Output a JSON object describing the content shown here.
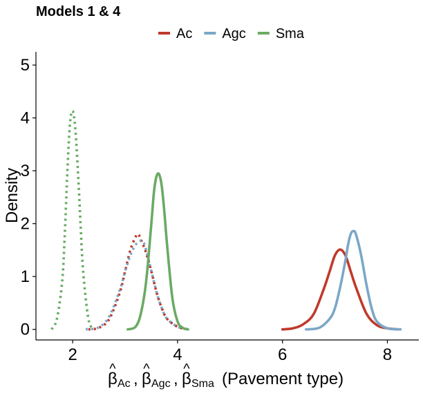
{
  "chart_data": {
    "type": "line",
    "title": "Models 1  & 4",
    "xlabel": "(Pavement type)",
    "xlabel_symbols": {
      "hat": "^",
      "beta": "β",
      "separator": ",",
      "sub_ac": "Ac",
      "sub_agc": "Agc",
      "sub_sma": "Sma"
    },
    "ylabel": "Density",
    "xlim": [
      1.3,
      8.6
    ],
    "ylim": [
      -0.2,
      5.25
    ],
    "x_ticks": [
      2,
      4,
      6,
      8
    ],
    "x_tick_labels": [
      "2",
      "4",
      "6",
      "8"
    ],
    "y_ticks": [
      0,
      1,
      2,
      3,
      4,
      5
    ],
    "y_tick_labels": [
      "0",
      "1",
      "2",
      "3",
      "4",
      "5"
    ],
    "legend": {
      "position": "top",
      "entries": [
        {
          "label": "Ac",
          "color": "#c0392b"
        },
        {
          "label": "Agc",
          "color": "#7aa7c7"
        },
        {
          "label": "Sma",
          "color": "#6aaa64"
        }
      ]
    },
    "series": [
      {
        "name": "Ac (Model 4)",
        "group": "Ac",
        "color": "#c0392b",
        "style": "solid",
        "x": [
          6.0,
          6.2,
          6.4,
          6.6,
          6.8,
          6.9,
          7.0,
          7.1,
          7.2,
          7.3,
          7.4,
          7.6,
          7.8,
          8.0,
          8.2
        ],
        "y": [
          0.0,
          0.02,
          0.1,
          0.3,
          0.8,
          1.1,
          1.4,
          1.51,
          1.4,
          1.1,
          0.8,
          0.3,
          0.08,
          0.02,
          0.0
        ]
      },
      {
        "name": "Agc (Model 4)",
        "group": "Agc",
        "color": "#7aa7c7",
        "style": "solid",
        "x": [
          6.45,
          6.7,
          6.9,
          7.0,
          7.1,
          7.2,
          7.25,
          7.3,
          7.35,
          7.4,
          7.5,
          7.6,
          7.7,
          7.8,
          8.0,
          8.25
        ],
        "y": [
          0.0,
          0.03,
          0.2,
          0.4,
          0.8,
          1.3,
          1.6,
          1.8,
          1.86,
          1.8,
          1.4,
          0.85,
          0.4,
          0.15,
          0.02,
          0.0
        ]
      },
      {
        "name": "Sma (Model 4)",
        "group": "Sma",
        "color": "#6aaa64",
        "style": "solid",
        "x": [
          3.05,
          3.2,
          3.3,
          3.4,
          3.5,
          3.55,
          3.6,
          3.65,
          3.7,
          3.75,
          3.8,
          3.9,
          4.0,
          4.1,
          4.2
        ],
        "y": [
          0.0,
          0.05,
          0.3,
          0.9,
          2.0,
          2.6,
          2.9,
          2.93,
          2.7,
          2.2,
          1.6,
          0.6,
          0.15,
          0.03,
          0.0
        ]
      },
      {
        "name": "Ac (Model 1)",
        "group": "Ac",
        "color": "#c0392b",
        "style": "dotted",
        "x": [
          2.3,
          2.5,
          2.7,
          2.9,
          3.0,
          3.1,
          3.2,
          3.25,
          3.3,
          3.4,
          3.5,
          3.6,
          3.7,
          3.8,
          4.0,
          4.2
        ],
        "y": [
          0.0,
          0.03,
          0.2,
          0.7,
          1.1,
          1.5,
          1.75,
          1.8,
          1.7,
          1.45,
          1.1,
          0.7,
          0.4,
          0.2,
          0.05,
          0.0
        ]
      },
      {
        "name": "Agc (Model 1)",
        "group": "Agc",
        "color": "#7aa7c7",
        "style": "dotted",
        "x": [
          2.25,
          2.5,
          2.7,
          2.9,
          3.0,
          3.1,
          3.2,
          3.3,
          3.35,
          3.4,
          3.5,
          3.6,
          3.7,
          3.8,
          4.0,
          4.2
        ],
        "y": [
          0.0,
          0.04,
          0.25,
          0.75,
          1.1,
          1.4,
          1.6,
          1.68,
          1.65,
          1.5,
          1.1,
          0.7,
          0.4,
          0.2,
          0.05,
          0.0
        ]
      },
      {
        "name": "Sma (Model 1)",
        "group": "Sma",
        "color": "#6aaa64",
        "style": "dotted",
        "x": [
          1.6,
          1.7,
          1.8,
          1.85,
          1.9,
          1.95,
          2.0,
          2.05,
          2.1,
          2.15,
          2.2,
          2.3,
          2.4
        ],
        "y": [
          0.0,
          0.2,
          0.9,
          1.8,
          3.0,
          3.9,
          4.13,
          3.8,
          3.0,
          2.0,
          1.1,
          0.2,
          0.0
        ]
      }
    ]
  }
}
